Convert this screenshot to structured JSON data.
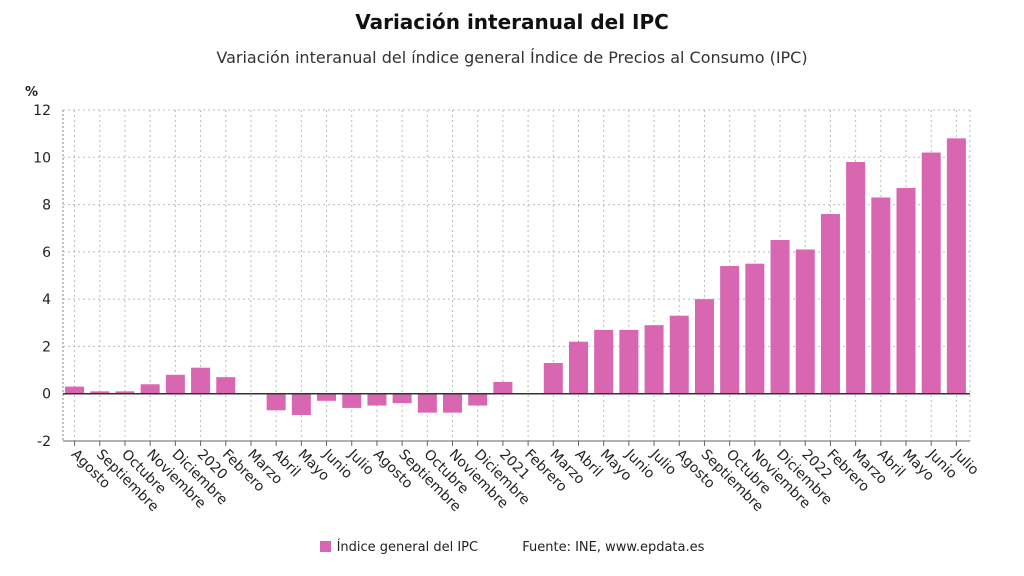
{
  "chart_data": {
    "type": "bar",
    "title": "Variación interanual del IPC",
    "subtitle": "Variación interanual del índice general Índice de Precios al Consumo (IPC)",
    "ylabel": "%",
    "xlabel": "",
    "ylim": [
      -2,
      12
    ],
    "yticks": [
      -2,
      0,
      2,
      4,
      6,
      8,
      10,
      12
    ],
    "grid": true,
    "legend": "bottom",
    "color": "#d966b0",
    "categories": [
      "Agosto",
      "Septiembre",
      "Octubre",
      "Noviembre",
      "Diciembre",
      "2020",
      "Febrero",
      "Marzo",
      "Abril",
      "Mayo",
      "Junio",
      "Julio",
      "Agosto",
      "Septiembre",
      "Octubre",
      "Noviembre",
      "Diciembre",
      "2021",
      "Febrero",
      "Marzo",
      "Abril",
      "Mayo",
      "Junio",
      "Julio",
      "Agosto",
      "Septiembre",
      "Octubre",
      "Noviembre",
      "Diciembre",
      "2022",
      "Febrero",
      "Marzo",
      "Abril",
      "Mayo",
      "Junio",
      "Julio"
    ],
    "series": [
      {
        "name": "Índice general del IPC",
        "values": [
          0.3,
          0.1,
          0.1,
          0.4,
          0.8,
          1.1,
          0.7,
          0.0,
          -0.7,
          -0.9,
          -0.3,
          -0.6,
          -0.5,
          -0.4,
          -0.8,
          -0.8,
          -0.5,
          0.5,
          0.0,
          1.3,
          2.2,
          2.7,
          2.7,
          2.9,
          3.3,
          4.0,
          5.4,
          5.5,
          6.5,
          6.1,
          7.6,
          9.8,
          8.3,
          8.7,
          10.2,
          10.8
        ]
      }
    ],
    "source": "Fuente: INE, www.epdata.es"
  }
}
